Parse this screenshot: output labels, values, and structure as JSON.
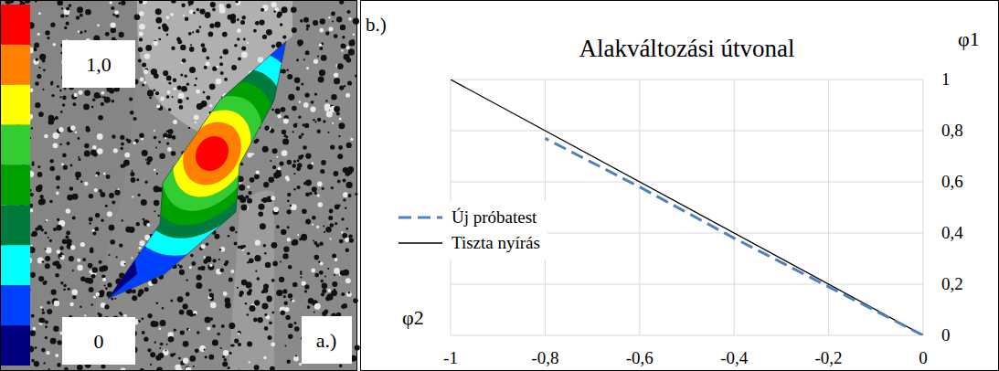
{
  "chart_data": {
    "type": "line",
    "title": "Alakváltozási útvonal",
    "panel_label": "b.)",
    "xlabel": "φ2",
    "ylabel": "φ1",
    "series": [
      {
        "name": "Új próbatest",
        "color": "#4f81bd",
        "line_style": "dashed",
        "x": [
          0,
          -0.2,
          -0.4,
          -0.6,
          -0.8
        ],
        "values": [
          0,
          0.19,
          0.38,
          0.58,
          0.77
        ]
      },
      {
        "name": "Tiszta nyírás",
        "color": "#000000",
        "line_style": "solid",
        "x": [
          -1,
          0
        ],
        "values": [
          1,
          0
        ]
      }
    ],
    "xlim": [
      -1,
      0
    ],
    "xticks": [
      -1,
      {
        "value": -0.8,
        "label": "-0,8"
      },
      {
        "value": -0.6,
        "label": "-0,6"
      },
      {
        "value": -0.4,
        "label": "-0,4"
      },
      {
        "value": -0.2,
        "label": "-0,2"
      },
      0
    ],
    "ylim": [
      0,
      1
    ],
    "yticks": [
      0,
      {
        "value": 0.2,
        "label": "0,2"
      },
      {
        "value": 0.4,
        "label": "0,4"
      },
      {
        "value": 0.6,
        "label": "0,6"
      },
      {
        "value": 0.8,
        "label": "0,8"
      },
      1
    ],
    "grid": true,
    "legend": "center left"
  },
  "strain_map": {
    "panel_label": "a.)",
    "colorbar": {
      "range": [
        0,
        1
      ],
      "ticks": [
        {
          "value": 1,
          "label": "1,0"
        },
        0
      ],
      "colors": [
        "#ff0000",
        "#ff8000",
        "#ffff00",
        "#33cc33",
        "#00a000",
        "#007a3d",
        "#00ffff",
        "#0040ff",
        "#000080"
      ]
    }
  }
}
